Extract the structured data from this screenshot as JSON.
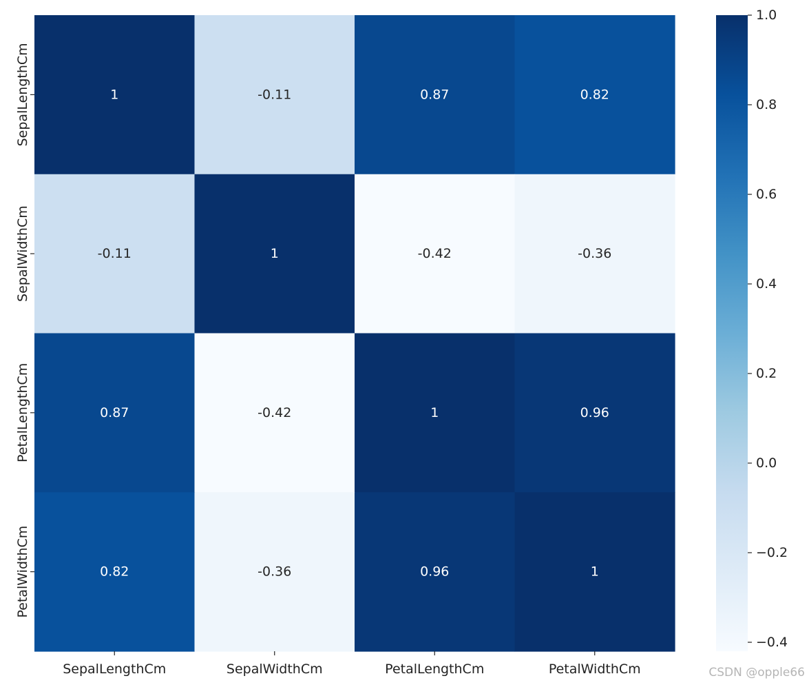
{
  "chart_data": {
    "type": "heatmap",
    "title": "",
    "xlabel": "",
    "ylabel": "",
    "x_categories": [
      "SepalLengthCm",
      "SepalWidthCm",
      "PetalLengthCm",
      "PetalWidthCm"
    ],
    "y_categories": [
      "SepalLengthCm",
      "SepalWidthCm",
      "PetalLengthCm",
      "PetalWidthCm"
    ],
    "values": [
      [
        1,
        -0.11,
        0.87,
        0.82
      ],
      [
        -0.11,
        1,
        -0.42,
        -0.36
      ],
      [
        0.87,
        -0.42,
        1,
        0.96
      ],
      [
        0.82,
        -0.36,
        0.96,
        1
      ]
    ],
    "annotations": [
      [
        "1",
        "-0.11",
        "0.87",
        "0.82"
      ],
      [
        "-0.11",
        "1",
        "-0.42",
        "-0.36"
      ],
      [
        "0.87",
        "-0.42",
        "1",
        "0.96"
      ],
      [
        "0.82",
        "-0.36",
        "0.96",
        "1"
      ]
    ],
    "colormap": "Blues",
    "colorbar": {
      "range": [
        -0.42,
        1.0
      ],
      "ticks": [
        1.0,
        0.8,
        0.6,
        0.4,
        0.2,
        0.0,
        -0.2,
        -0.4
      ],
      "tick_labels": [
        "1.0",
        "0.8",
        "0.6",
        "0.4",
        "0.2",
        "0.0",
        "−0.2",
        "−0.4"
      ]
    },
    "legend_placement": "right"
  },
  "watermark": "CSDN @opple66"
}
